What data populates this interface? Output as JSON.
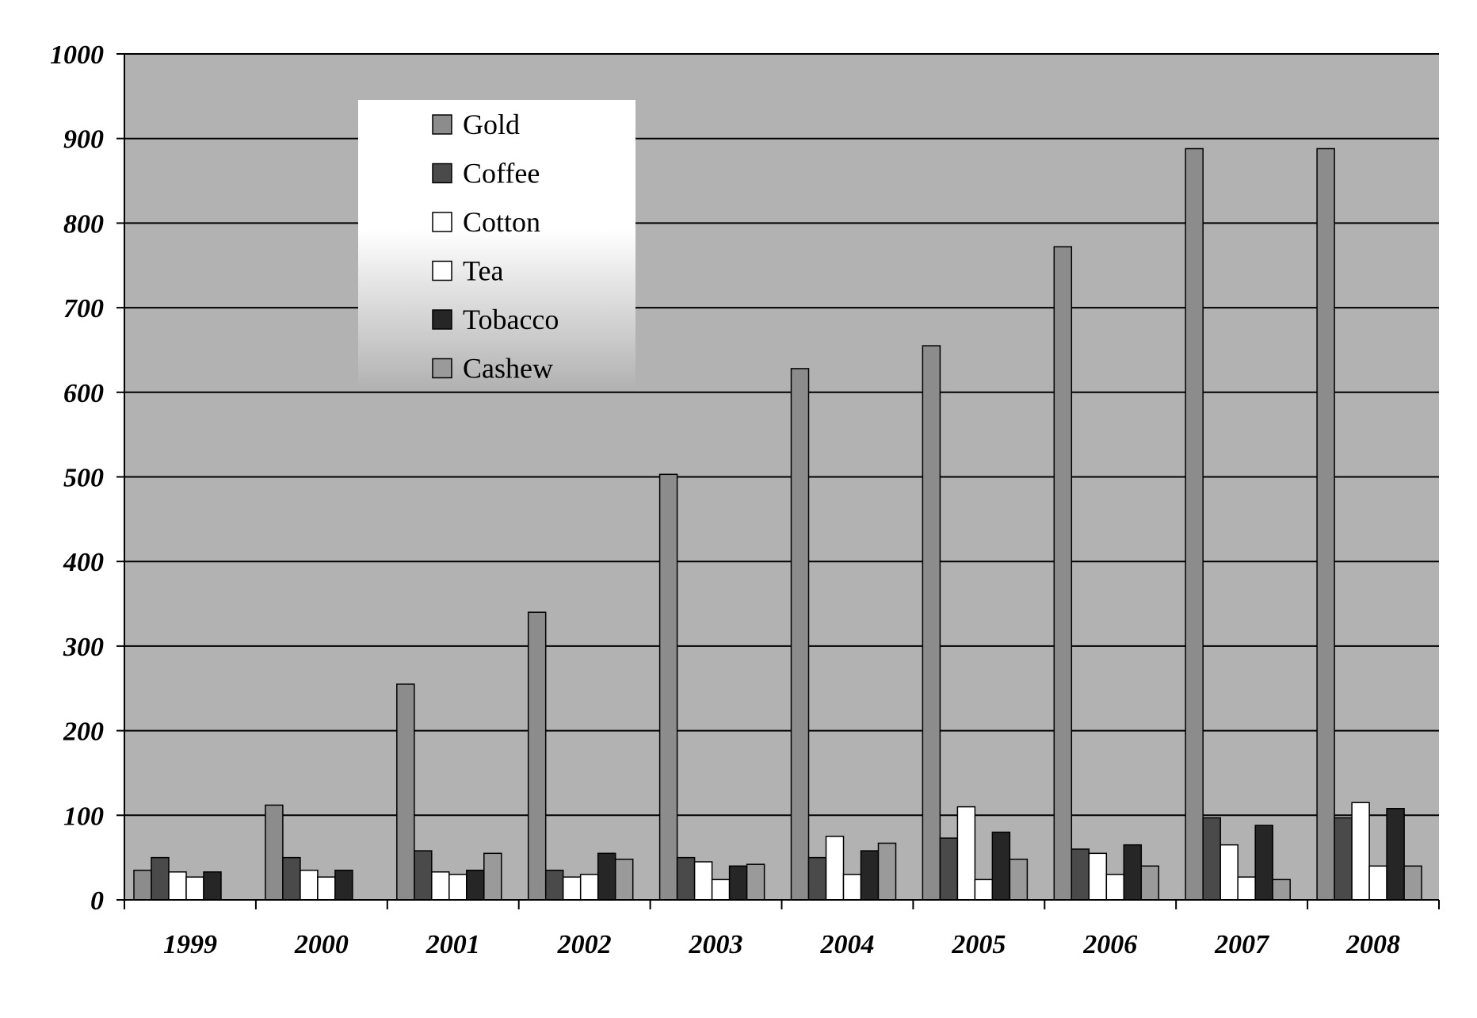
{
  "chart_data": {
    "type": "bar",
    "title": "",
    "xlabel": "",
    "ylabel": "",
    "ylim": [
      0,
      1000
    ],
    "yticks": [
      0,
      100,
      200,
      300,
      400,
      500,
      600,
      700,
      800,
      900,
      1000
    ],
    "grid": true,
    "legend_position": "top-left",
    "categories": [
      "1999",
      "2000",
      "2001",
      "2002",
      "2003",
      "2004",
      "2005",
      "2006",
      "2007",
      "2008"
    ],
    "series": [
      {
        "name": "Gold",
        "color": "#8c8c8c",
        "values": [
          35,
          112,
          255,
          340,
          503,
          628,
          655,
          772,
          888,
          888
        ]
      },
      {
        "name": "Coffee",
        "color": "#4a4a4a",
        "values": [
          50,
          50,
          58,
          35,
          50,
          50,
          73,
          60,
          97,
          97
        ]
      },
      {
        "name": "Cotton",
        "color": "#ffffff",
        "values": [
          33,
          35,
          33,
          27,
          45,
          75,
          110,
          55,
          65,
          115
        ]
      },
      {
        "name": "Tea",
        "color": "#ffffff",
        "values": [
          27,
          27,
          30,
          30,
          24,
          30,
          24,
          30,
          27,
          40
        ]
      },
      {
        "name": "Tobacco",
        "color": "#262626",
        "values": [
          33,
          35,
          35,
          55,
          40,
          58,
          80,
          65,
          88,
          108
        ]
      },
      {
        "name": "Cashew",
        "color": "#9a9a9a",
        "values": [
          0,
          0,
          55,
          48,
          42,
          67,
          48,
          40,
          24,
          40
        ]
      }
    ],
    "colors": {
      "plot_background": "#b2b2b2",
      "gridline": "#000000"
    }
  }
}
